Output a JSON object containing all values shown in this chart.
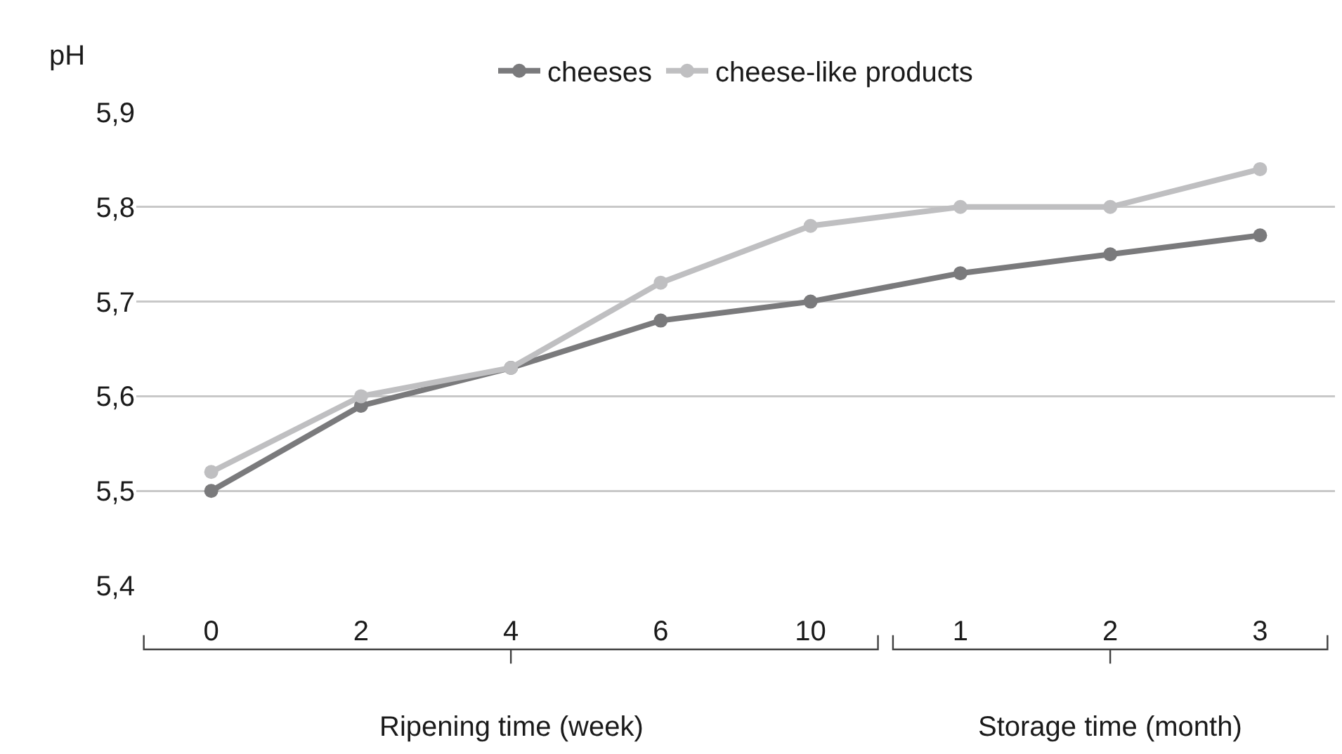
{
  "chart_data": {
    "type": "line",
    "ylabel": "pH",
    "categories": [
      "0",
      "2",
      "4",
      "6",
      "10",
      "1",
      "2",
      "3"
    ],
    "series": [
      {
        "name": "cheeses",
        "color": "#7a7a7c",
        "values": [
          5.5,
          5.59,
          5.63,
          5.68,
          5.7,
          5.73,
          5.75,
          5.77
        ]
      },
      {
        "name": "cheese-like products",
        "color": "#bfbfc1",
        "values": [
          5.52,
          5.6,
          5.63,
          5.72,
          5.78,
          5.8,
          5.8,
          5.84
        ]
      }
    ],
    "ylim": [
      5.4,
      5.9
    ],
    "yticks": [
      {
        "value": 5.4,
        "label": "5,4"
      },
      {
        "value": 5.5,
        "label": "5,5"
      },
      {
        "value": 5.6,
        "label": "5,6"
      },
      {
        "value": 5.7,
        "label": "5,7"
      },
      {
        "value": 5.8,
        "label": "5,8"
      },
      {
        "value": 5.9,
        "label": "5,9"
      }
    ],
    "grid": "y",
    "legend": "top",
    "marker": "circle",
    "line_style": "solid",
    "annotations": [
      "Ripening time (week)",
      "Storage time (month)"
    ]
  }
}
